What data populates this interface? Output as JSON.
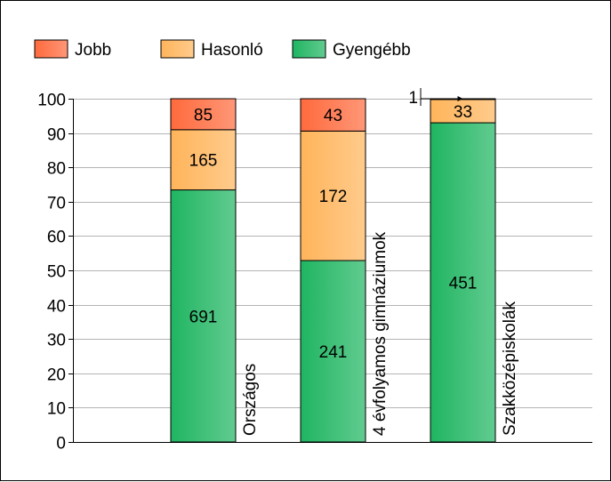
{
  "chart_data": {
    "type": "bar",
    "stacked": true,
    "normalized": true,
    "categories": [
      "Országos",
      "4 évfolyamos gimnáziumok",
      "Szakközépiskolák"
    ],
    "series": [
      {
        "name": "Gyengébb",
        "values": [
          691,
          241,
          451
        ],
        "color": "#1fb561"
      },
      {
        "name": "Hasonló",
        "values": [
          165,
          172,
          33
        ],
        "color": "#ffb45a"
      },
      {
        "name": "Jobb",
        "values": [
          85,
          43,
          1
        ],
        "color": "#ff6a3d"
      }
    ],
    "legend_order": [
      "Jobb",
      "Hasonló",
      "Gyengébb"
    ],
    "legend_position": "top-left",
    "ylim": [
      0,
      100
    ],
    "yticks": [
      0,
      10,
      20,
      30,
      40,
      50,
      60,
      70,
      80,
      90,
      100
    ],
    "grid": true,
    "category_label_orientation": "vertical"
  }
}
